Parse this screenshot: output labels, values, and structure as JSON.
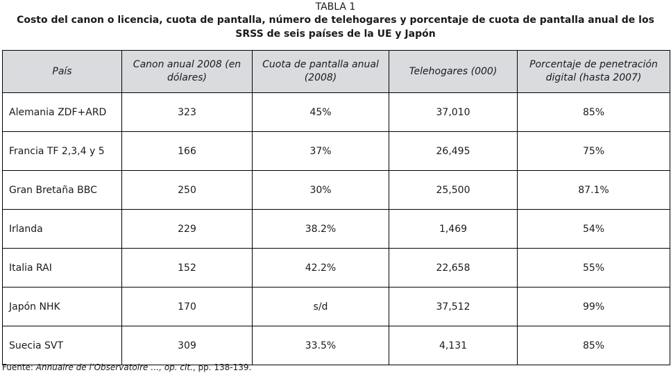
{
  "caption": "TABLA 1",
  "title": "Costo del canon o licencia, cuota de pantalla, número de telehogares y porcentaje de cuota de pantalla anual de los SRSS de seis países de la UE y Japón",
  "table": {
    "headers": [
      "País",
      "Canon anual 2008 (en dólares)",
      "Cuota de pantalla anual (2008)",
      "Telehogares (000)",
      "Porcentaje de penetración digital (hasta 2007)"
    ],
    "rows": [
      [
        "Alemania ZDF+ARD",
        "323",
        "45%",
        "37,010",
        "85%"
      ],
      [
        "Francia TF 2,3,4 y 5",
        "166",
        "37%",
        "26,495",
        "75%"
      ],
      [
        "Gran Bretaña BBC",
        "250",
        "30%",
        "25,500",
        "87.1%"
      ],
      [
        "Irlanda",
        "229",
        "38.2%",
        "1,469",
        "54%"
      ],
      [
        "Italia RAI",
        "152",
        "42.2%",
        "22,658",
        "55%"
      ],
      [
        "Japón NHK",
        "170",
        "s/d",
        "37,512",
        "99%"
      ],
      [
        "Suecia SVT",
        "309",
        "33.5%",
        "4,131",
        "85%"
      ]
    ]
  },
  "source": {
    "prefix": "Fuente: ",
    "italic": "Annuaire de l’Observatoire …, op. cit.",
    "suffix": ", pp. 138-139."
  }
}
